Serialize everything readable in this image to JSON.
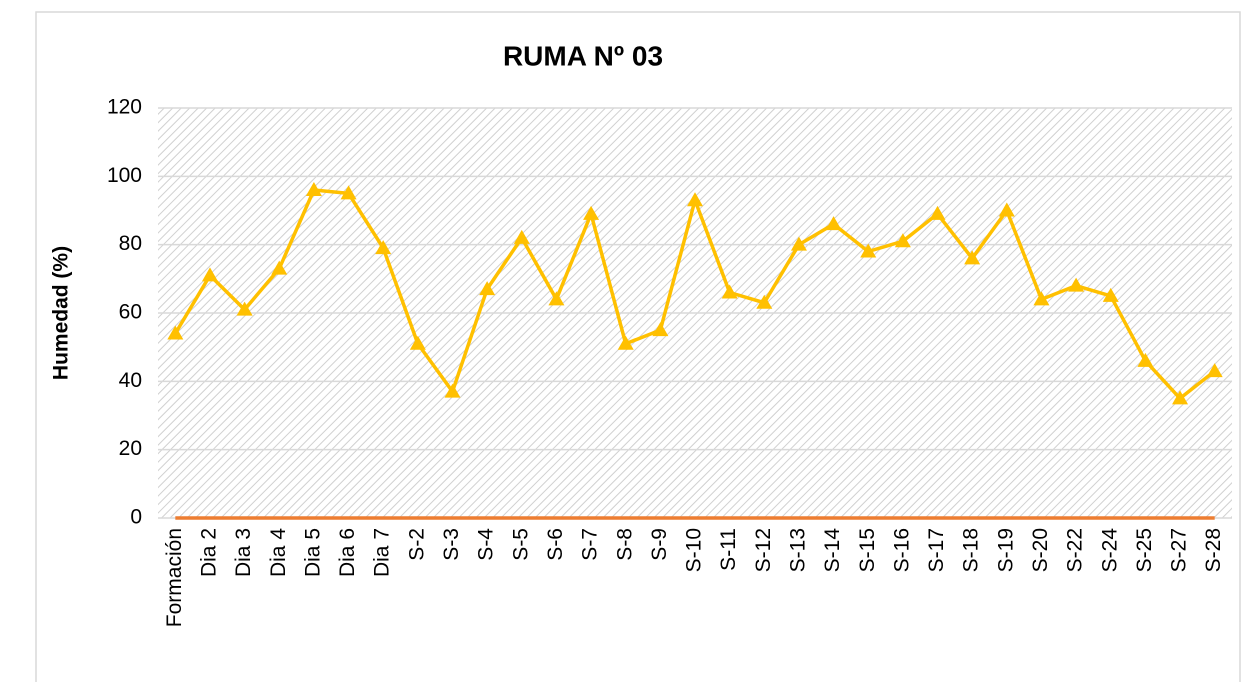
{
  "chart_data": {
    "type": "line",
    "title": "RUMA Nº 03",
    "y_label": "Humedad (%)",
    "categories": [
      "Formación",
      "Dia 2",
      "Dia 3",
      "Dia 4",
      "Dia 5",
      "Dia 6",
      "Dia 7",
      "S-2",
      "S-3",
      "S-4",
      "S-5",
      "S-6",
      "S-7",
      "S-8",
      "S-9",
      "S-10",
      "S-11",
      "S-12",
      "S-13",
      "S-14",
      "S-15",
      "S-16",
      "S-17",
      "S-18",
      "S-19",
      "S-20",
      "S-22",
      "S-24",
      "S-25",
      "S-27",
      "S-28"
    ],
    "series": [
      {
        "color": "#ffc000",
        "marker": "triangle",
        "values": [
          54,
          71,
          61,
          73,
          96,
          95,
          79,
          51,
          37,
          67,
          82,
          64,
          89,
          51,
          55,
          93,
          66,
          63,
          80,
          86,
          78,
          81,
          89,
          76,
          90,
          64,
          68,
          65,
          46,
          35,
          43
        ]
      },
      {
        "color": "#ed7d31",
        "values": [
          0,
          0,
          0,
          0,
          0,
          0,
          0,
          0,
          0,
          0,
          0,
          0,
          0,
          0,
          0,
          0,
          0,
          0,
          0,
          0,
          0,
          0,
          0,
          0,
          0,
          0,
          0,
          0,
          0,
          0,
          0
        ]
      }
    ],
    "ylim": [
      0,
      120
    ],
    "yticks": [
      0,
      20,
      40,
      60,
      80,
      100,
      120
    ],
    "grid": true
  }
}
